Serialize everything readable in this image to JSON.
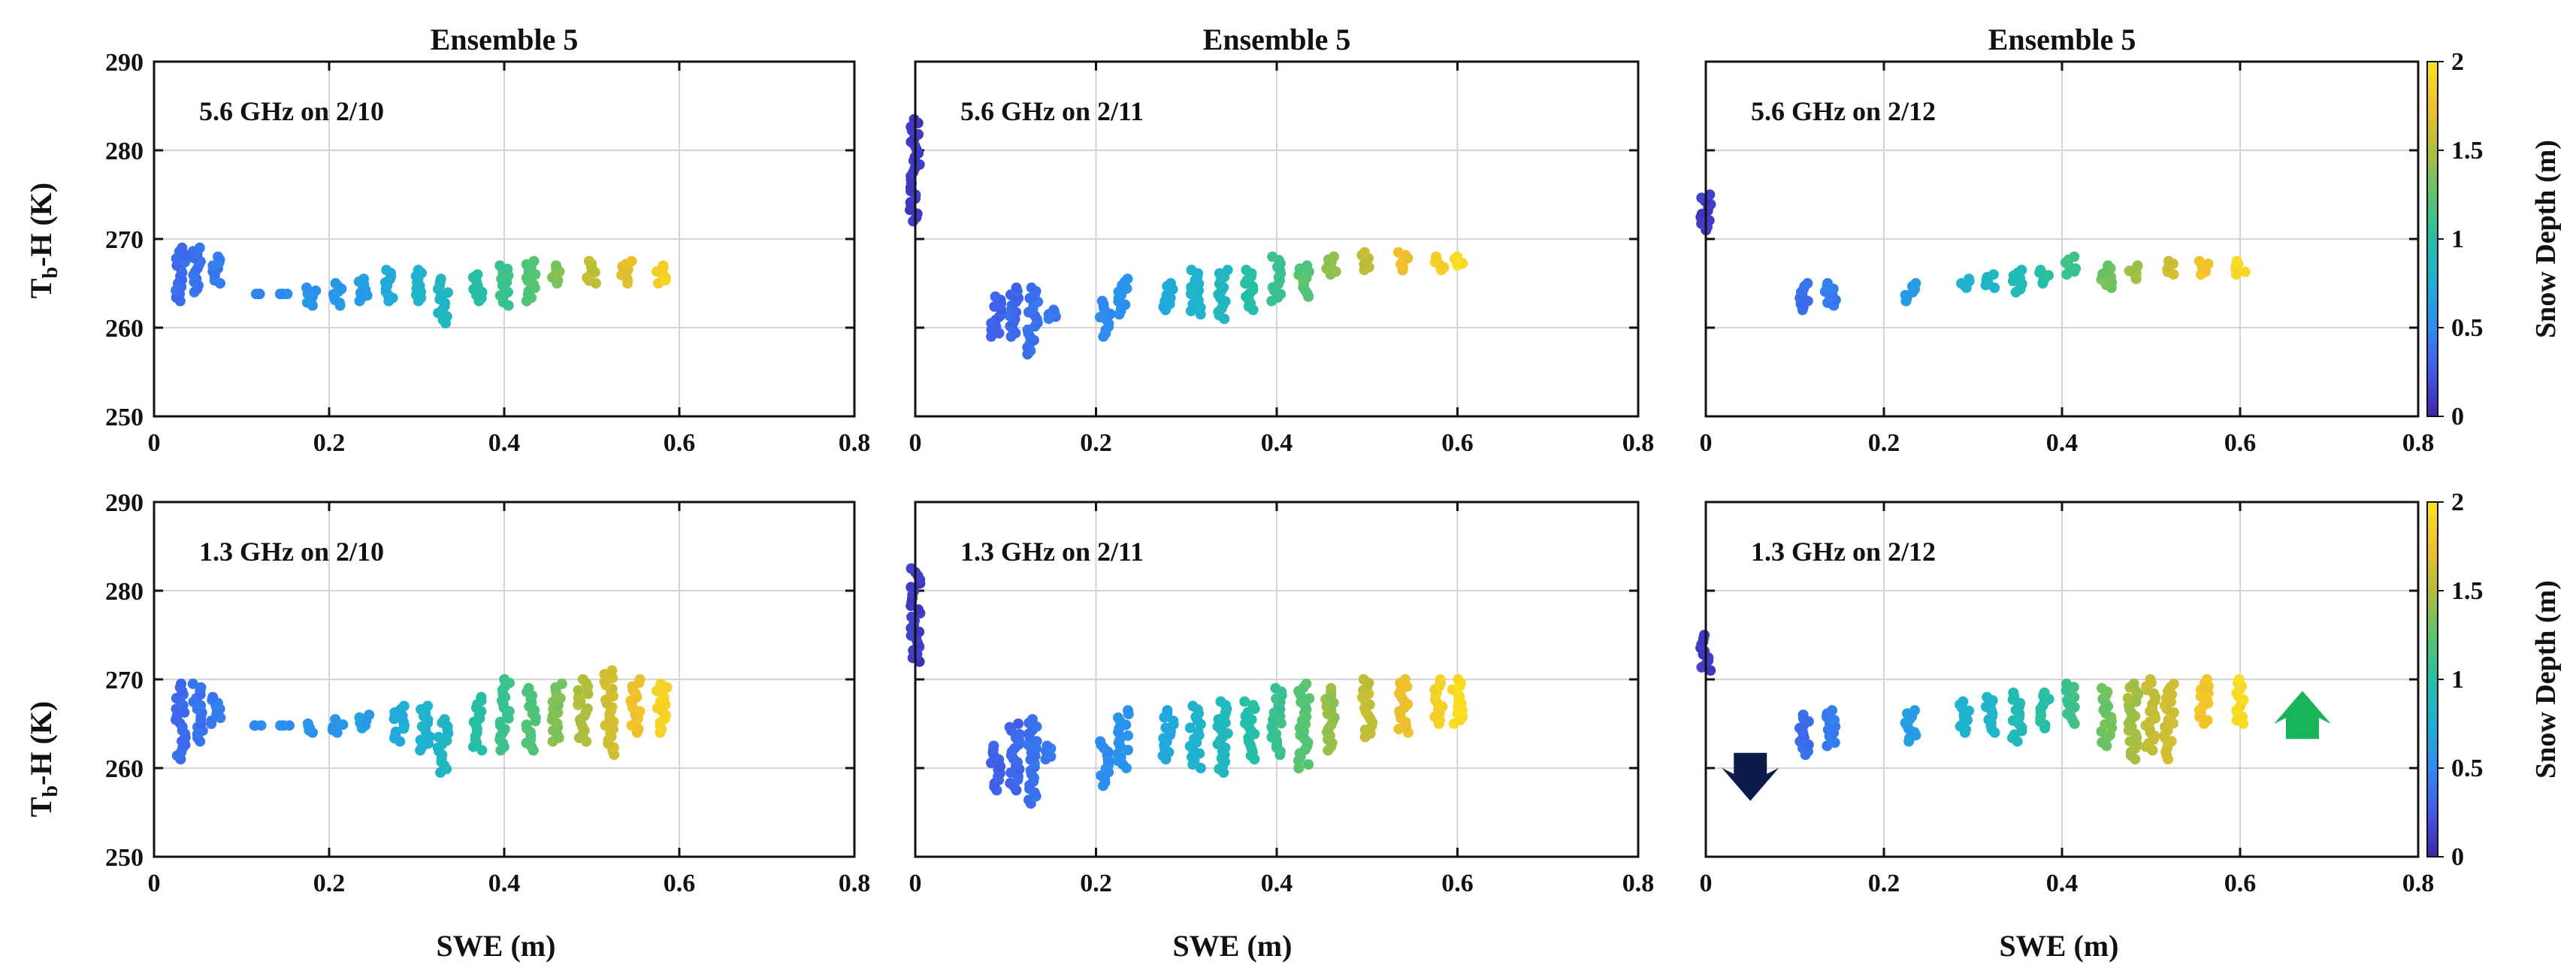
{
  "figure": {
    "ylabel_main": "T",
    "ylabel_sub": "b",
    "ylabel_rest": "-H (K)",
    "xlabel": "SWE (m)",
    "colorbar_label": "Snow Depth (m)",
    "colorbar_ticks": [
      "0",
      "0.5",
      "1",
      "1.5",
      "2"
    ],
    "colorbar_range": [
      0,
      2
    ],
    "colormap": [
      "#3e26a8",
      "#4557e8",
      "#2d8cf0",
      "#1fb0d6",
      "#25bfa5",
      "#5cc46b",
      "#b4bd3a",
      "#f2c02c",
      "#f9e51f"
    ],
    "arrow_down_color": "#0d1b4a",
    "arrow_up_color": "#19b35a"
  },
  "chart_data": [
    {
      "type": "scatter",
      "title": "Ensemble 5",
      "annotation": "5.6 GHz on 2/10",
      "xlim": [
        0,
        0.8
      ],
      "ylim": [
        250,
        290
      ],
      "xticks": [
        "0",
        "0.2",
        "0.4",
        "0.6",
        "0.8"
      ],
      "yticks": [
        "250",
        "260",
        "270",
        "280",
        "290"
      ],
      "grid": true,
      "color_by": "snow depth (m)",
      "clusters": [
        {
          "swe": 0.03,
          "tb": [
            263,
            269
          ],
          "depth": 0.35
        },
        {
          "swe": 0.05,
          "tb": [
            264,
            269
          ],
          "depth": 0.38
        },
        {
          "swe": 0.07,
          "tb": [
            265,
            268
          ],
          "depth": 0.42
        },
        {
          "swe": 0.12,
          "tb": [
            263.8,
            263.8
          ],
          "depth": 0.48
        },
        {
          "swe": 0.15,
          "tb": [
            263.8,
            263.8
          ],
          "depth": 0.5
        },
        {
          "swe": 0.18,
          "tb": [
            262.5,
            264.5
          ],
          "depth": 0.55
        },
        {
          "swe": 0.21,
          "tb": [
            262.5,
            265
          ],
          "depth": 0.58
        },
        {
          "swe": 0.24,
          "tb": [
            263,
            265.5
          ],
          "depth": 0.62
        },
        {
          "swe": 0.27,
          "tb": [
            263,
            266.5
          ],
          "depth": 0.7
        },
        {
          "swe": 0.3,
          "tb": [
            263,
            266.5
          ],
          "depth": 0.8
        },
        {
          "swe": 0.33,
          "tb": [
            260.5,
            265.5
          ],
          "depth": 0.85
        },
        {
          "swe": 0.37,
          "tb": [
            263,
            266
          ],
          "depth": 1.0
        },
        {
          "swe": 0.4,
          "tb": [
            262.5,
            267
          ],
          "depth": 1.1
        },
        {
          "swe": 0.43,
          "tb": [
            263,
            267.5
          ],
          "depth": 1.2
        },
        {
          "swe": 0.46,
          "tb": [
            265,
            267
          ],
          "depth": 1.35
        },
        {
          "swe": 0.5,
          "tb": [
            265,
            267.5
          ],
          "depth": 1.55
        },
        {
          "swe": 0.54,
          "tb": [
            265,
            267.5
          ],
          "depth": 1.7
        },
        {
          "swe": 0.58,
          "tb": [
            265,
            267
          ],
          "depth": 1.85
        }
      ]
    },
    {
      "type": "scatter",
      "title": "Ensemble 5",
      "annotation": "5.6 GHz on 2/11",
      "xlim": [
        0,
        0.8
      ],
      "ylim": [
        250,
        290
      ],
      "xticks": [
        "0",
        "0.2",
        "0.4",
        "0.6",
        "0.8"
      ],
      "yticks": [
        "250",
        "260",
        "270",
        "280",
        "290"
      ],
      "grid": true,
      "color_by": "snow depth (m)",
      "clusters": [
        {
          "swe": 0.0,
          "tb": [
            272,
            283.5
          ],
          "depth": 0.1
        },
        {
          "swe": 0.09,
          "tb": [
            259,
            263.5
          ],
          "depth": 0.3
        },
        {
          "swe": 0.11,
          "tb": [
            259,
            264.5
          ],
          "depth": 0.33
        },
        {
          "swe": 0.13,
          "tb": [
            257,
            264.5
          ],
          "depth": 0.38
        },
        {
          "swe": 0.15,
          "tb": [
            261,
            262
          ],
          "depth": 0.42
        },
        {
          "swe": 0.21,
          "tb": [
            259,
            263
          ],
          "depth": 0.5
        },
        {
          "swe": 0.23,
          "tb": [
            261.5,
            265.5
          ],
          "depth": 0.55
        },
        {
          "swe": 0.28,
          "tb": [
            262,
            265
          ],
          "depth": 0.7
        },
        {
          "swe": 0.31,
          "tb": [
            261.5,
            266.5
          ],
          "depth": 0.8
        },
        {
          "swe": 0.34,
          "tb": [
            261,
            266.5
          ],
          "depth": 0.88
        },
        {
          "swe": 0.37,
          "tb": [
            262,
            266.5
          ],
          "depth": 0.98
        },
        {
          "swe": 0.4,
          "tb": [
            263,
            268
          ],
          "depth": 1.1
        },
        {
          "swe": 0.43,
          "tb": [
            263.5,
            267
          ],
          "depth": 1.22
        },
        {
          "swe": 0.46,
          "tb": [
            266,
            268
          ],
          "depth": 1.4
        },
        {
          "swe": 0.5,
          "tb": [
            266.5,
            268.5
          ],
          "depth": 1.55
        },
        {
          "swe": 0.54,
          "tb": [
            266.5,
            268.5
          ],
          "depth": 1.72
        },
        {
          "swe": 0.58,
          "tb": [
            266.5,
            268
          ],
          "depth": 1.85
        },
        {
          "swe": 0.6,
          "tb": [
            267,
            268
          ],
          "depth": 1.95
        }
      ]
    },
    {
      "type": "scatter",
      "title": "Ensemble 5",
      "annotation": "5.6 GHz on 2/12",
      "xlim": [
        0,
        0.8
      ],
      "ylim": [
        250,
        290
      ],
      "xticks": [
        "0",
        "0.2",
        "0.4",
        "0.6",
        "0.8"
      ],
      "yticks": [
        "250",
        "260",
        "270",
        "280",
        "290"
      ],
      "grid": true,
      "color_by": "snow depth (m)",
      "clusters": [
        {
          "swe": 0.0,
          "tb": [
            271,
            275
          ],
          "depth": 0.1
        },
        {
          "swe": 0.11,
          "tb": [
            262,
            265
          ],
          "depth": 0.35
        },
        {
          "swe": 0.14,
          "tb": [
            262.5,
            265
          ],
          "depth": 0.42
        },
        {
          "swe": 0.23,
          "tb": [
            263,
            265
          ],
          "depth": 0.62
        },
        {
          "swe": 0.29,
          "tb": [
            264.5,
            265.5
          ],
          "depth": 0.78
        },
        {
          "swe": 0.32,
          "tb": [
            264.5,
            266
          ],
          "depth": 0.82
        },
        {
          "swe": 0.35,
          "tb": [
            264,
            266.5
          ],
          "depth": 0.9
        },
        {
          "swe": 0.38,
          "tb": [
            265,
            266.5
          ],
          "depth": 1.0
        },
        {
          "swe": 0.41,
          "tb": [
            266,
            268
          ],
          "depth": 1.12
        },
        {
          "swe": 0.45,
          "tb": [
            264.5,
            267
          ],
          "depth": 1.3
        },
        {
          "swe": 0.48,
          "tb": [
            265.5,
            267
          ],
          "depth": 1.45
        },
        {
          "swe": 0.52,
          "tb": [
            266,
            267.5
          ],
          "depth": 1.62
        },
        {
          "swe": 0.56,
          "tb": [
            266,
            267.5
          ],
          "depth": 1.78
        },
        {
          "swe": 0.6,
          "tb": [
            266,
            267.5
          ],
          "depth": 1.92
        }
      ]
    },
    {
      "type": "scatter",
      "title": "",
      "annotation": "1.3 GHz on 2/10",
      "xlim": [
        0,
        0.8
      ],
      "ylim": [
        250,
        290
      ],
      "xticks": [
        "0",
        "0.2",
        "0.4",
        "0.6",
        "0.8"
      ],
      "yticks": [
        "250",
        "260",
        "270",
        "280",
        "290"
      ],
      "grid": true,
      "color_by": "snow depth (m)",
      "clusters": [
        {
          "swe": 0.03,
          "tb": [
            261,
            269.5
          ],
          "depth": 0.35
        },
        {
          "swe": 0.05,
          "tb": [
            263,
            269.5
          ],
          "depth": 0.38
        },
        {
          "swe": 0.07,
          "tb": [
            265,
            268
          ],
          "depth": 0.42
        },
        {
          "swe": 0.12,
          "tb": [
            264.8,
            264.8
          ],
          "depth": 0.48
        },
        {
          "swe": 0.15,
          "tb": [
            264.8,
            264.8
          ],
          "depth": 0.5
        },
        {
          "swe": 0.18,
          "tb": [
            264,
            265
          ],
          "depth": 0.55
        },
        {
          "swe": 0.21,
          "tb": [
            264,
            265.5
          ],
          "depth": 0.58
        },
        {
          "swe": 0.24,
          "tb": [
            264.5,
            266
          ],
          "depth": 0.62
        },
        {
          "swe": 0.28,
          "tb": [
            263,
            267
          ],
          "depth": 0.72
        },
        {
          "swe": 0.31,
          "tb": [
            262,
            267
          ],
          "depth": 0.8
        },
        {
          "swe": 0.33,
          "tb": [
            259.5,
            265.5
          ],
          "depth": 0.85
        },
        {
          "swe": 0.37,
          "tb": [
            262,
            268
          ],
          "depth": 1.0
        },
        {
          "swe": 0.4,
          "tb": [
            262,
            270
          ],
          "depth": 1.1
        },
        {
          "swe": 0.43,
          "tb": [
            262,
            269
          ],
          "depth": 1.2
        },
        {
          "swe": 0.46,
          "tb": [
            263,
            269.5
          ],
          "depth": 1.35
        },
        {
          "swe": 0.49,
          "tb": [
            263,
            270
          ],
          "depth": 1.5
        },
        {
          "swe": 0.52,
          "tb": [
            261.5,
            271
          ],
          "depth": 1.62
        },
        {
          "swe": 0.55,
          "tb": [
            264,
            270
          ],
          "depth": 1.75
        },
        {
          "swe": 0.58,
          "tb": [
            264,
            269.5
          ],
          "depth": 1.88
        }
      ]
    },
    {
      "type": "scatter",
      "title": "",
      "annotation": "1.3 GHz on 2/11",
      "xlim": [
        0,
        0.8
      ],
      "ylim": [
        250,
        290
      ],
      "xticks": [
        "0",
        "0.2",
        "0.4",
        "0.6",
        "0.8"
      ],
      "yticks": [
        "250",
        "260",
        "270",
        "280",
        "290"
      ],
      "grid": true,
      "color_by": "snow depth (m)",
      "clusters": [
        {
          "swe": 0.0,
          "tb": [
            272,
            282.5
          ],
          "depth": 0.1
        },
        {
          "swe": 0.09,
          "tb": [
            257.5,
            262.5
          ],
          "depth": 0.3
        },
        {
          "swe": 0.11,
          "tb": [
            257.5,
            265
          ],
          "depth": 0.33
        },
        {
          "swe": 0.13,
          "tb": [
            256,
            265.5
          ],
          "depth": 0.38
        },
        {
          "swe": 0.15,
          "tb": [
            261,
            262.5
          ],
          "depth": 0.42
        },
        {
          "swe": 0.21,
          "tb": [
            258,
            263
          ],
          "depth": 0.5
        },
        {
          "swe": 0.23,
          "tb": [
            260,
            266.5
          ],
          "depth": 0.55
        },
        {
          "swe": 0.28,
          "tb": [
            261,
            266.5
          ],
          "depth": 0.7
        },
        {
          "swe": 0.31,
          "tb": [
            260,
            267
          ],
          "depth": 0.8
        },
        {
          "swe": 0.34,
          "tb": [
            259.5,
            267.5
          ],
          "depth": 0.88
        },
        {
          "swe": 0.37,
          "tb": [
            261,
            267.5
          ],
          "depth": 0.98
        },
        {
          "swe": 0.4,
          "tb": [
            261.5,
            269
          ],
          "depth": 1.1
        },
        {
          "swe": 0.43,
          "tb": [
            260,
            269.5
          ],
          "depth": 1.22
        },
        {
          "swe": 0.46,
          "tb": [
            262,
            269
          ],
          "depth": 1.4
        },
        {
          "swe": 0.5,
          "tb": [
            263.5,
            270
          ],
          "depth": 1.55
        },
        {
          "swe": 0.54,
          "tb": [
            264,
            270
          ],
          "depth": 1.72
        },
        {
          "swe": 0.58,
          "tb": [
            265,
            270
          ],
          "depth": 1.85
        },
        {
          "swe": 0.6,
          "tb": [
            265,
            270
          ],
          "depth": 1.95
        }
      ]
    },
    {
      "type": "scatter",
      "title": "",
      "annotation": "1.3 GHz on 2/12",
      "xlim": [
        0,
        0.8
      ],
      "ylim": [
        250,
        290
      ],
      "xticks": [
        "0",
        "0.2",
        "0.4",
        "0.6",
        "0.8"
      ],
      "yticks": [
        "250",
        "260",
        "270",
        "280",
        "290"
      ],
      "grid": true,
      "color_by": "snow depth (m)",
      "markers": [
        {
          "type": "arrow-down",
          "swe": 0.05,
          "tb": 258.5
        },
        {
          "type": "arrow-up",
          "swe": 0.67,
          "tb": 266.5
        }
      ],
      "clusters": [
        {
          "swe": 0.0,
          "tb": [
            271,
            275
          ],
          "depth": 0.1
        },
        {
          "swe": 0.11,
          "tb": [
            261.5,
            266
          ],
          "depth": 0.35
        },
        {
          "swe": 0.14,
          "tb": [
            262.5,
            266.5
          ],
          "depth": 0.42
        },
        {
          "swe": 0.23,
          "tb": [
            263,
            266.5
          ],
          "depth": 0.62
        },
        {
          "swe": 0.29,
          "tb": [
            264,
            267.5
          ],
          "depth": 0.78
        },
        {
          "swe": 0.32,
          "tb": [
            264,
            268
          ],
          "depth": 0.82
        },
        {
          "swe": 0.35,
          "tb": [
            263,
            268.5
          ],
          "depth": 0.9
        },
        {
          "swe": 0.38,
          "tb": [
            264.5,
            268.5
          ],
          "depth": 1.0
        },
        {
          "swe": 0.41,
          "tb": [
            265,
            269.5
          ],
          "depth": 1.12
        },
        {
          "swe": 0.45,
          "tb": [
            262.5,
            269
          ],
          "depth": 1.3
        },
        {
          "swe": 0.48,
          "tb": [
            261,
            269.5
          ],
          "depth": 1.45
        },
        {
          "swe": 0.5,
          "tb": [
            262,
            270
          ],
          "depth": 1.55
        },
        {
          "swe": 0.52,
          "tb": [
            261,
            269.5
          ],
          "depth": 1.62
        },
        {
          "swe": 0.56,
          "tb": [
            265,
            270
          ],
          "depth": 1.78
        },
        {
          "swe": 0.6,
          "tb": [
            265,
            270
          ],
          "depth": 1.92
        }
      ]
    }
  ]
}
